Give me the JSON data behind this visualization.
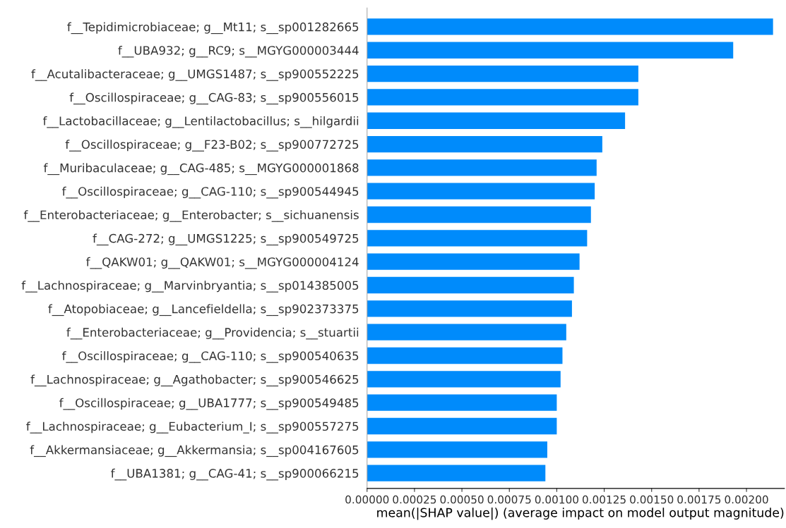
{
  "chart_data": {
    "type": "bar",
    "orientation": "horizontal",
    "xlabel": "mean(|SHAP value|) (average impact on model output magnitude)",
    "categories": [
      "f__Tepidimicrobiaceae; g__Mt11; s__sp001282665",
      "f__UBA932; g__RC9; s__MGYG000003444",
      "f__Acutalibacteraceae; g__UMGS1487; s__sp900552225",
      "f__Oscillospiraceae; g__CAG-83; s__sp900556015",
      "f__Lactobacillaceae; g__Lentilactobacillus; s__hilgardii",
      "f__Oscillospiraceae; g__F23-B02; s__sp900772725",
      "f__Muribaculaceae; g__CAG-485; s__MGYG000001868",
      "f__Oscillospiraceae; g__CAG-110; s__sp900544945",
      "f__Enterobacteriaceae; g__Enterobacter; s__sichuanensis",
      "f__CAG-272; g__UMGS1225; s__sp900549725",
      "f__QAKW01; g__QAKW01; s__MGYG000004124",
      "f__Lachnospiraceae; g__Marvinbryantia; s__sp014385005",
      "f__Atopobiaceae; g__Lancefieldella; s__sp902373375",
      "f__Enterobacteriaceae; g__Providencia; s__stuartii",
      "f__Oscillospiraceae; g__CAG-110; s__sp900540635",
      "f__Lachnospiraceae; g__Agathobacter; s__sp900546625",
      "f__Oscillospiraceae; g__UBA1777; s__sp900549485",
      "f__Lachnospiraceae; g__Eubacterium_I; s__sp900557275",
      "f__Akkermansiaceae; g__Akkermansia; s__sp004167605",
      "f__UBA1381; g__CAG-41; s__sp900066215"
    ],
    "values": [
      0.00214,
      0.00193,
      0.00143,
      0.00143,
      0.00136,
      0.00124,
      0.00121,
      0.0012,
      0.00118,
      0.00116,
      0.00112,
      0.00109,
      0.00108,
      0.00105,
      0.00103,
      0.00102,
      0.001,
      0.001,
      0.00095,
      0.00094
    ],
    "color": "#008bfb",
    "xlim": [
      0,
      0.0022
    ],
    "xticks": [
      {
        "value": 0,
        "label": "0.00000"
      },
      {
        "value": 0.00025,
        "label": "0.00025"
      },
      {
        "value": 0.0005,
        "label": "0.00050"
      },
      {
        "value": 0.00075,
        "label": "0.00075"
      },
      {
        "value": 0.001,
        "label": "0.00100"
      },
      {
        "value": 0.00125,
        "label": "0.00125"
      },
      {
        "value": 0.0015,
        "label": "0.00150"
      },
      {
        "value": 0.00175,
        "label": "0.00175"
      },
      {
        "value": 0.002,
        "label": "0.00200"
      }
    ],
    "grid": false
  }
}
